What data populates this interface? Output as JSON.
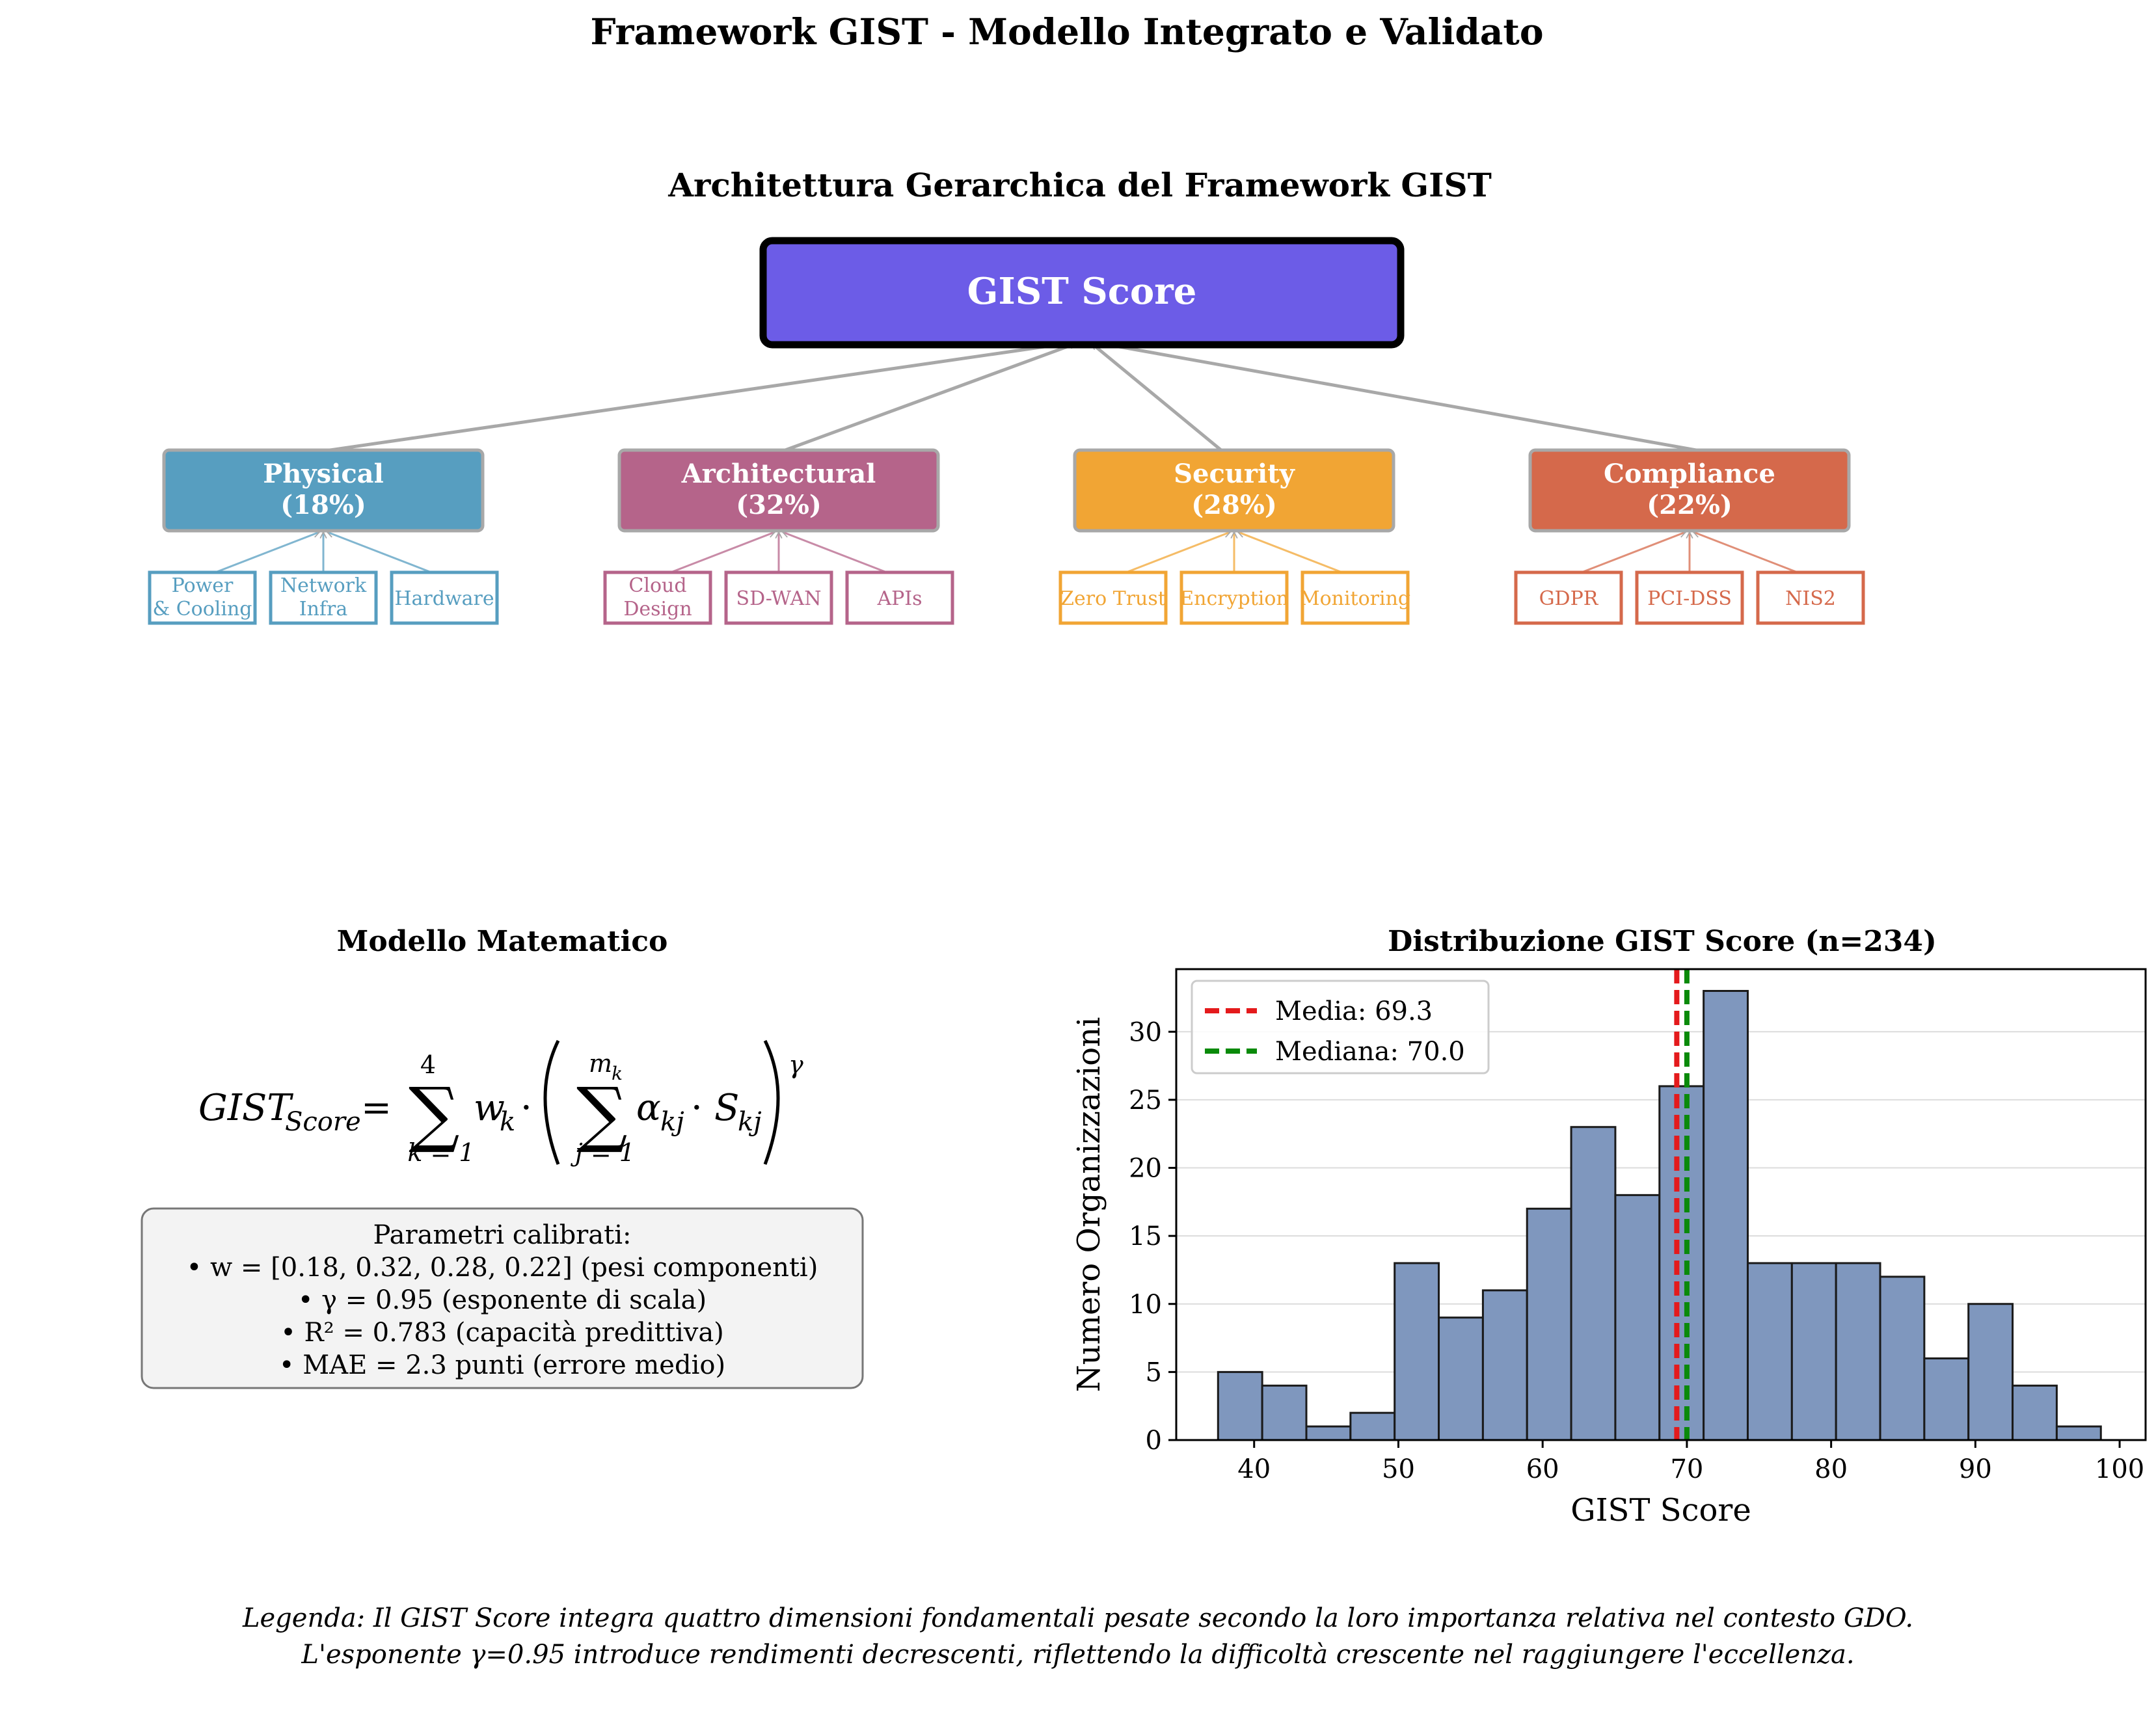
{
  "figure": {
    "title": "Framework GIST - Modello Integrato e Validato",
    "footer_line1": "Legenda: Il GIST Score integra quattro dimensioni fondamentali pesate secondo la loro importanza relativa nel contesto GDO.",
    "footer_line2": "L'esponente γ=0.95 introduce rendimenti decrescenti, riflettendo la difficoltà crescente nel raggiungere l'eccellenza."
  },
  "hierarchy": {
    "title": "Architettura Gerarchica del Framework GIST",
    "root_label": "GIST Score",
    "root_color": "#6C5CE7",
    "components": [
      {
        "name": "Physical",
        "weight": "(18%)",
        "color": "#579EC0",
        "subs": [
          "Power\n& Cooling",
          "Network\nInfra",
          "Hardware"
        ]
      },
      {
        "name": "Architectural",
        "weight": "(32%)",
        "color": "#B5648A",
        "subs": [
          "Cloud\nDesign",
          "SD-WAN",
          "APIs"
        ]
      },
      {
        "name": "Security",
        "weight": "(28%)",
        "color": "#F1A534",
        "subs": [
          "Zero Trust",
          "Encryption",
          "Monitoring"
        ]
      },
      {
        "name": "Compliance",
        "weight": "(22%)",
        "color": "#D5694B",
        "subs": [
          "GDPR",
          "PCI-DSS",
          "NIS2"
        ]
      }
    ]
  },
  "model": {
    "title": "Modello Matematico",
    "params_title": "Parametri calibrati:",
    "params": [
      "• w = [0.18, 0.32, 0.28, 0.22] (pesi componenti)",
      "• γ = 0.95 (esponente di scala)",
      "• R² = 0.783 (capacità predittiva)",
      "• MAE = 2.3 punti (errore medio)"
    ]
  },
  "chart_data": {
    "type": "bar",
    "title": "Distribuzione GIST Score (n=234)",
    "xlabel": "GIST Score",
    "ylabel": "Numero Organizzazioni",
    "bin_edges": [
      37.5,
      40.56,
      43.62,
      46.68,
      49.74,
      52.8,
      55.86,
      58.92,
      61.98,
      65.04,
      68.1,
      71.16,
      74.22,
      77.28,
      80.34,
      83.4,
      86.46,
      89.52,
      92.58,
      95.64,
      98.7
    ],
    "values": [
      5,
      4,
      1,
      2,
      13,
      9,
      11,
      17,
      23,
      18,
      26,
      33,
      13,
      13,
      13,
      12,
      6,
      10,
      4,
      1
    ],
    "xlim": [
      34.6,
      101.8
    ],
    "ylim": [
      0,
      34.6
    ],
    "xticks": [
      40,
      50,
      60,
      70,
      80,
      90,
      100
    ],
    "yticks": [
      0,
      5,
      10,
      15,
      20,
      25,
      30
    ],
    "bar_color": "#7F97BE",
    "grid": "y",
    "legend_position": "upper-left",
    "lines": [
      {
        "label": "Media: 69.3",
        "value": 69.3,
        "color": "#E41A1C"
      },
      {
        "label": "Mediana: 70.0",
        "value": 70.0,
        "color": "#0A8A0A"
      }
    ]
  }
}
